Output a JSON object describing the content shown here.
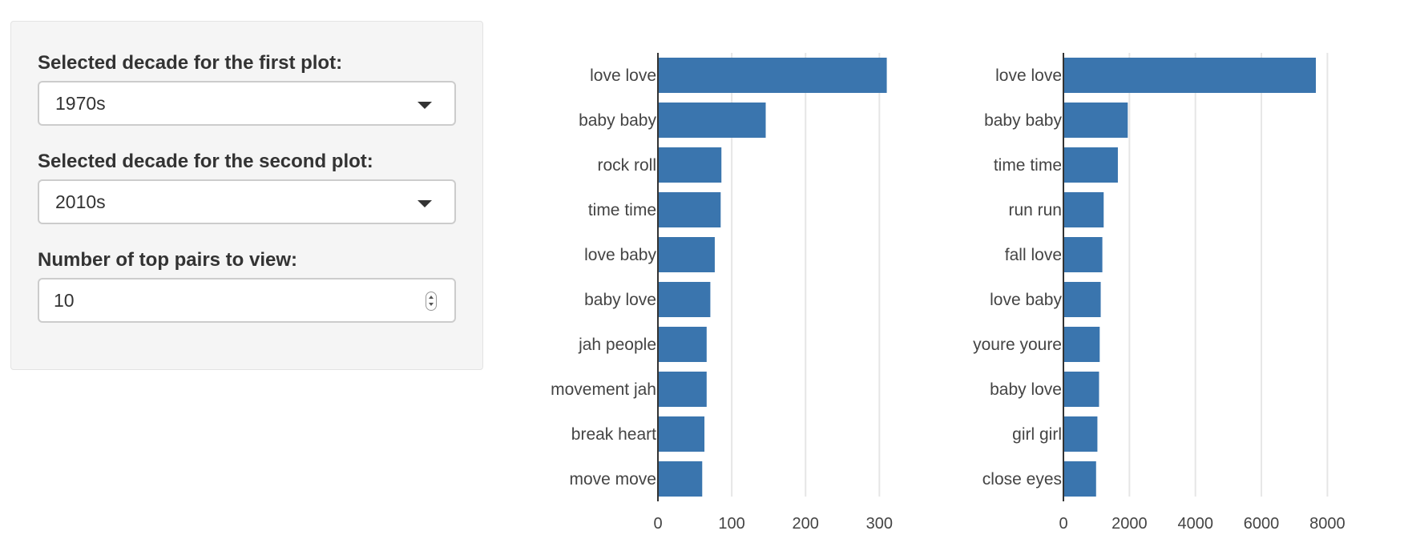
{
  "controls": {
    "first_plot": {
      "label": "Selected decade for the first plot:",
      "value": "1970s"
    },
    "second_plot": {
      "label": "Selected decade for the second plot:",
      "value": "2010s"
    },
    "top_pairs": {
      "label": "Number of top pairs to view:",
      "value": "10"
    }
  },
  "theme": {
    "bar_color": "#3a75ae",
    "grid_color": "#e6e6e6",
    "axis_color": "#333333",
    "panel_bg": "#f5f5f5"
  },
  "chart_data": [
    {
      "type": "bar",
      "orientation": "horizontal",
      "categories": [
        "love love",
        "baby baby",
        "rock roll",
        "time time",
        "love baby",
        "baby love",
        "jah people",
        "movement jah",
        "break heart",
        "move move"
      ],
      "values": [
        310,
        146,
        86,
        85,
        77,
        71,
        66,
        66,
        63,
        60
      ],
      "xlim": [
        0,
        330
      ],
      "xticks": [
        0,
        100,
        200,
        300
      ],
      "xtick_labels": [
        "0",
        "100",
        "200",
        "300"
      ],
      "grid": true,
      "title": "",
      "xlabel": "",
      "ylabel": ""
    },
    {
      "type": "bar",
      "orientation": "horizontal",
      "categories": [
        "love love",
        "baby baby",
        "time time",
        "run run",
        "fall love",
        "love baby",
        "youre youre",
        "baby love",
        "girl girl",
        "close eyes"
      ],
      "values": [
        7650,
        1950,
        1650,
        1220,
        1180,
        1130,
        1100,
        1080,
        1030,
        990
      ],
      "xlim": [
        0,
        8500
      ],
      "xticks": [
        0,
        2000,
        4000,
        6000,
        8000
      ],
      "xtick_labels": [
        "0",
        "2000",
        "4000",
        "6000",
        "8000"
      ],
      "grid": true,
      "title": "",
      "xlabel": "",
      "ylabel": ""
    }
  ]
}
